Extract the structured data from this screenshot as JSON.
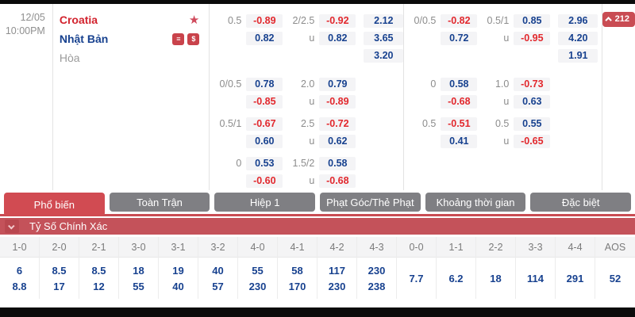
{
  "match": {
    "date": "12/05",
    "time": "10:00PM",
    "home_team": "Croatia",
    "away_team": "Nhật Bản",
    "draw_label": "Hòa",
    "more_markets_count": "212"
  },
  "icons": {
    "favorite_star": "★",
    "banknote_badge": "≡",
    "dollar_badge": "$"
  },
  "odds": {
    "under_label": "u",
    "full_time": {
      "hdp": [
        {
          "line": "0.5",
          "home": "-0.89",
          "away": "0.82"
        },
        {
          "line": "0/0.5",
          "home": "0.78",
          "away": "-0.85"
        },
        {
          "line": "0.5/1",
          "home": "-0.67",
          "away": "0.60"
        },
        {
          "line": "0",
          "home": "0.53",
          "away": "-0.60"
        }
      ],
      "ou": [
        {
          "line": "2/2.5",
          "over": "-0.92",
          "under": "0.82"
        },
        {
          "line": "2.0",
          "over": "0.79",
          "under": "-0.89"
        },
        {
          "line": "2.5",
          "over": "-0.72",
          "under": "0.62"
        },
        {
          "line": "1.5/2",
          "over": "0.58",
          "under": "-0.68"
        }
      ],
      "x12": [
        "2.12",
        "3.65",
        "3.20"
      ]
    },
    "first_half": {
      "hdp": [
        {
          "line": "0/0.5",
          "home": "-0.82",
          "away": "0.72"
        },
        {
          "line": "0",
          "home": "0.58",
          "away": "-0.68"
        },
        {
          "line": "0.5",
          "home": "-0.51",
          "away": "0.41"
        }
      ],
      "ou": [
        {
          "line": "0.5/1",
          "over": "0.85",
          "under": "-0.95"
        },
        {
          "line": "1.0",
          "over": "-0.73",
          "under": "0.63"
        },
        {
          "line": "0.5",
          "over": "0.55",
          "under": "-0.65"
        }
      ],
      "x12": [
        "2.96",
        "4.20",
        "1.91"
      ]
    }
  },
  "tabs": [
    {
      "label": "Phổ biến",
      "active": true
    },
    {
      "label": "Toàn Trận",
      "active": false
    },
    {
      "label": "Hiệp 1",
      "active": false
    },
    {
      "label": "Phạt Góc/Thẻ Phạt",
      "active": false
    },
    {
      "label": "Khoảng thời gian",
      "active": false
    },
    {
      "label": "Đặc biệt",
      "active": false
    }
  ],
  "section": {
    "title": "Tỷ Số Chính Xác"
  },
  "score_grid": {
    "columns": [
      {
        "score": "1-0",
        "values": [
          "6",
          "8.8"
        ]
      },
      {
        "score": "2-0",
        "values": [
          "8.5",
          "17"
        ]
      },
      {
        "score": "2-1",
        "values": [
          "8.5",
          "12"
        ]
      },
      {
        "score": "3-0",
        "values": [
          "18",
          "55"
        ]
      },
      {
        "score": "3-1",
        "values": [
          "19",
          "40"
        ]
      },
      {
        "score": "3-2",
        "values": [
          "40",
          "57"
        ]
      },
      {
        "score": "4-0",
        "values": [
          "55",
          "230"
        ]
      },
      {
        "score": "4-1",
        "values": [
          "58",
          "170"
        ]
      },
      {
        "score": "4-2",
        "values": [
          "117",
          "230"
        ]
      },
      {
        "score": "4-3",
        "values": [
          "230",
          "238"
        ]
      },
      {
        "score": "0-0",
        "values": [
          "7.7"
        ]
      },
      {
        "score": "1-1",
        "values": [
          "6.2"
        ]
      },
      {
        "score": "2-2",
        "values": [
          "18"
        ]
      },
      {
        "score": "3-3",
        "values": [
          "114"
        ]
      },
      {
        "score": "4-4",
        "values": [
          "291"
        ]
      },
      {
        "score": "AOS",
        "values": [
          "52"
        ]
      }
    ]
  },
  "colors": {
    "negative_odds": "#e2282d",
    "positive_odds": "#17418f",
    "accent_red": "#c94c53",
    "tab_inactive": "#7f7f83",
    "home_team": "#d2232e",
    "away_team": "#17418f"
  }
}
